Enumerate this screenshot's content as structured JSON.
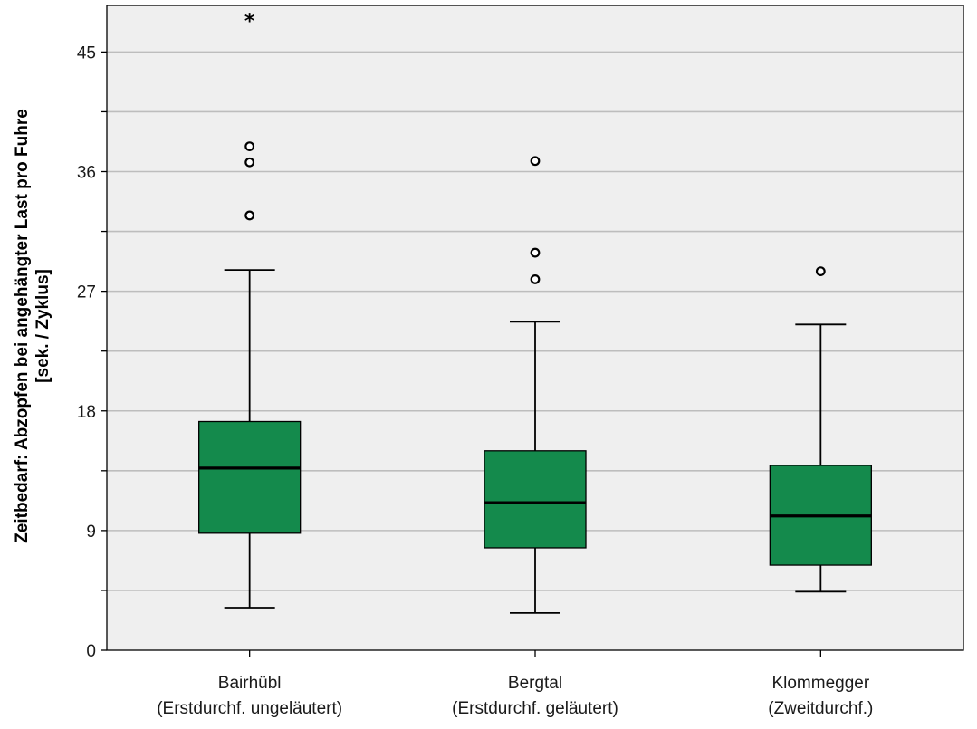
{
  "chart_data": {
    "type": "boxplot",
    "title": "",
    "xlabel": "",
    "ylabel_line1": "Zeitbedarf: Abzopfen bei angehängter Last pro Fuhre",
    "ylabel_line2": "[sek. / Zyklus]",
    "ylim": [
      0,
      48.5
    ],
    "yticks": [
      0,
      9,
      18,
      27,
      36,
      45
    ],
    "minor_yticks": [
      4.5,
      13.5,
      22.5,
      31.5,
      40.5
    ],
    "grid": true,
    "colors": {
      "box_fill": "#148a4c",
      "plot_background": "#efefef",
      "gridline": "#bdbdbd",
      "line": "#000000"
    },
    "categories": [
      {
        "line1": "Bairhübl",
        "line2": "(Erstdurchf. ungeläutert)"
      },
      {
        "line1": "Bergtal",
        "line2": "(Erstdurchf. geläutert)"
      },
      {
        "line1": "Klommegger",
        "line2": "(Zweitdurchf.)"
      }
    ],
    "boxes": [
      {
        "whisker_low": 3.2,
        "q1": 8.8,
        "median": 13.7,
        "q3": 17.2,
        "whisker_high": 28.6,
        "outliers": [
          32.7,
          36.7,
          37.9
        ],
        "extremes": [
          47.5
        ]
      },
      {
        "whisker_low": 2.8,
        "q1": 7.7,
        "median": 11.1,
        "q3": 15.0,
        "whisker_high": 24.7,
        "outliers": [
          27.9,
          29.9,
          36.8
        ],
        "extremes": []
      },
      {
        "whisker_low": 4.4,
        "q1": 6.4,
        "median": 10.1,
        "q3": 13.9,
        "whisker_high": 24.5,
        "outliers": [
          28.5
        ],
        "extremes": []
      }
    ]
  }
}
